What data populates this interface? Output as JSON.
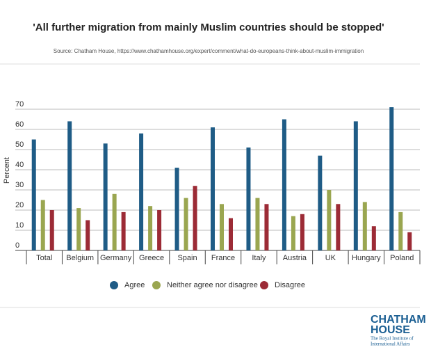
{
  "chart_data": {
    "type": "bar",
    "title": "'All further migration from mainly Muslim countries should be stopped'",
    "subtitle": "Source: Chatham House, https://www.chathamhouse.org/expert/comment/what-do-europeans-think-about-muslim-immigration",
    "y_label": "Percent",
    "categories": [
      "Total",
      "Belgium",
      "Germany",
      "Greece",
      "Spain",
      "France",
      "Italy",
      "Austria",
      "UK",
      "Hungary",
      "Poland"
    ],
    "series": [
      {
        "name": "Agree",
        "color": "#1f5c86",
        "values": [
          55,
          64,
          53,
          58,
          41,
          61,
          51,
          65,
          47,
          64,
          71
        ]
      },
      {
        "name": "Neither agree nor disagree",
        "color": "#9aa650",
        "values": [
          25,
          21,
          28,
          22,
          26,
          23,
          26,
          17,
          30,
          24,
          19
        ]
      },
      {
        "name": "Disagree",
        "color": "#9c2b36",
        "values": [
          20,
          15,
          19,
          20,
          32,
          16,
          23,
          18,
          23,
          12,
          9
        ]
      }
    ],
    "ylim": [
      0,
      75
    ],
    "yticks": [
      0,
      10,
      20,
      30,
      40,
      50,
      60,
      70
    ],
    "grid": true,
    "legend": "bottom"
  },
  "logo": {
    "line1": "CHATHAM",
    "line2": "HOUSE",
    "line3": "The Royal Institute of",
    "line4": "International Affairs"
  }
}
